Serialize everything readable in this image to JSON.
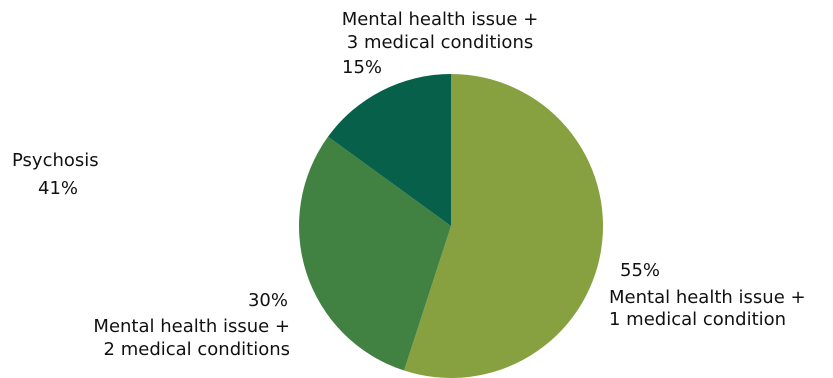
{
  "chart_data": {
    "type": "pie",
    "slices": [
      {
        "label": "Mental health issue + 1 medical condition",
        "label_lines": [
          "Mental health issue +",
          "1 medical condition"
        ],
        "value": 55,
        "value_label": "55%",
        "color": "#87a040"
      },
      {
        "label": "Mental health issue + 2 medical conditions",
        "label_lines": [
          "Mental health issue +",
          "2 medical conditions"
        ],
        "value": 30,
        "value_label": "30%",
        "color": "#418242"
      },
      {
        "label": "Mental health issue + 3 medical conditions",
        "label_lines": [
          "Mental health issue +",
          "3 medical conditions"
        ],
        "value": 15,
        "value_label": "15%",
        "color": "#06604a"
      }
    ],
    "extra_label": {
      "label": "Psychosis",
      "value_label": "41%"
    },
    "start_angle_deg": 0,
    "direction": "clockwise"
  }
}
